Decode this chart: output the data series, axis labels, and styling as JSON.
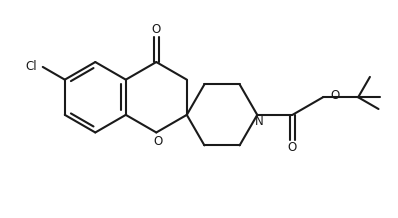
{
  "bg_color": "#ffffff",
  "line_color": "#1a1a1a",
  "line_width": 1.5,
  "fig_width": 3.98,
  "fig_height": 2.18,
  "dpi": 100,
  "xlim": [
    0,
    10
  ],
  "ylim": [
    0,
    5.5
  ]
}
